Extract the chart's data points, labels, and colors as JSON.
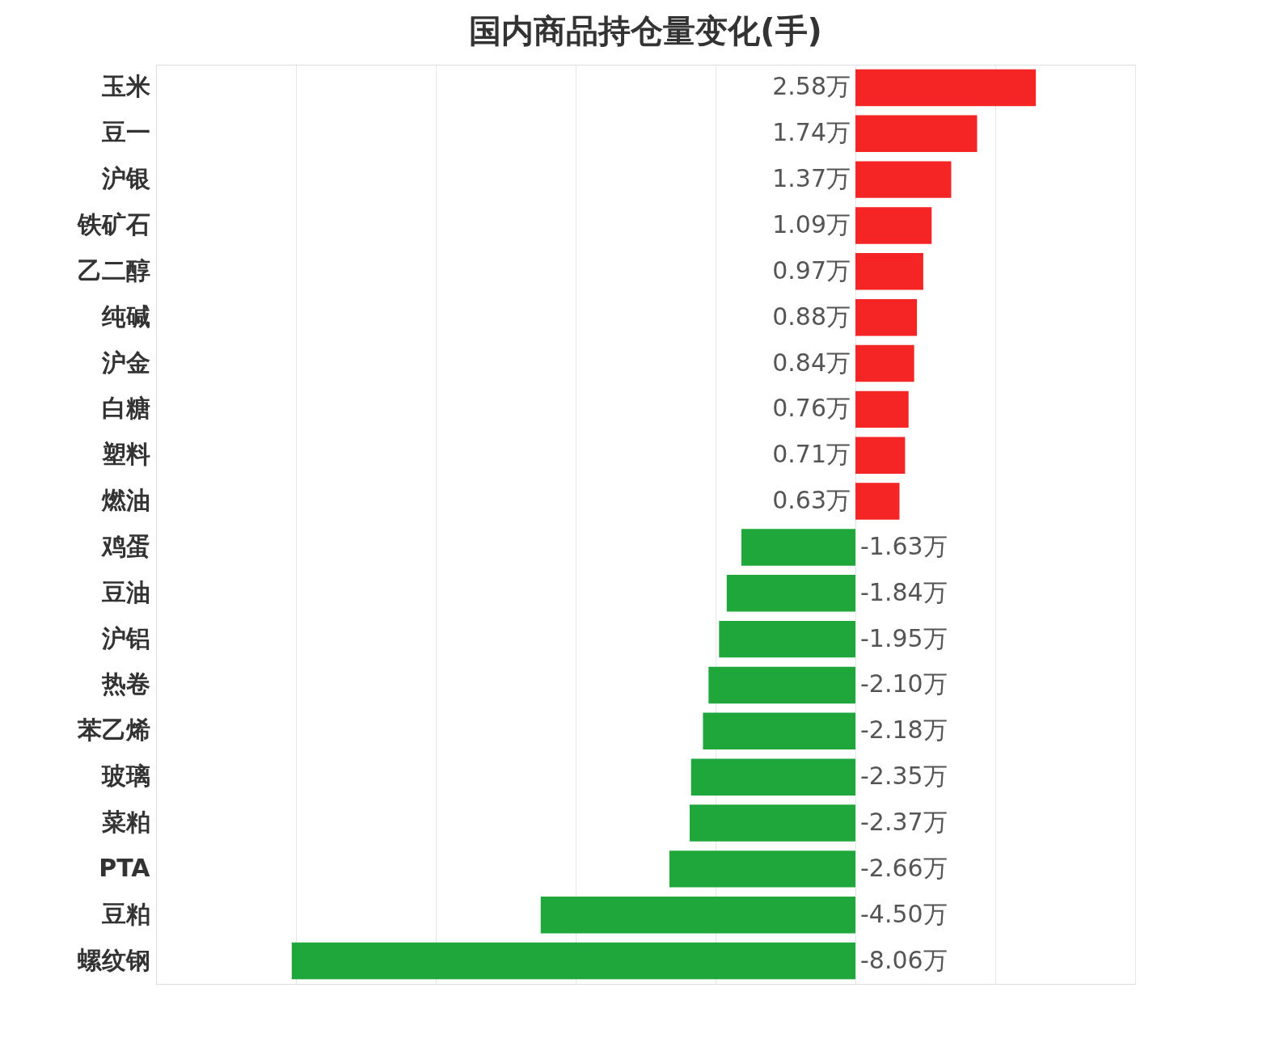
{
  "chart_data": {
    "type": "bar",
    "orientation": "horizontal",
    "title": "国内商品持仓量变化(手)",
    "categories": [
      "玉米",
      "豆一",
      "沪银",
      "铁矿石",
      "乙二醇",
      "纯碱",
      "沪金",
      "白糖",
      "塑料",
      "燃油",
      "鸡蛋",
      "豆油",
      "沪铝",
      "热卷",
      "苯乙烯",
      "玻璃",
      "菜粕",
      "PTA",
      "豆粕",
      "螺纹钢"
    ],
    "values": [
      2.58,
      1.74,
      1.37,
      1.09,
      0.97,
      0.88,
      0.84,
      0.76,
      0.71,
      0.63,
      -1.63,
      -1.84,
      -1.95,
      -2.1,
      -2.18,
      -2.35,
      -2.37,
      -2.66,
      -4.5,
      -8.06
    ],
    "value_labels": [
      "2.58万",
      "1.74万",
      "1.37万",
      "1.09万",
      "0.97万",
      "0.88万",
      "0.84万",
      "0.76万",
      "0.71万",
      "0.63万",
      "-1.63万",
      "-1.84万",
      "-1.95万",
      "-2.10万",
      "-2.18万",
      "-2.35万",
      "-2.37万",
      "-2.66万",
      "-4.50万",
      "-8.06万"
    ],
    "colors": [
      "#f52525",
      "#f52525",
      "#f52525",
      "#f52525",
      "#f52525",
      "#f52525",
      "#f52525",
      "#f52525",
      "#f52525",
      "#f52525",
      "#20a73c",
      "#20a73c",
      "#20a73c",
      "#20a73c",
      "#20a73c",
      "#20a73c",
      "#20a73c",
      "#20a73c",
      "#20a73c",
      "#20a73c"
    ],
    "xlim": [
      -10,
      4
    ],
    "xticks": [
      {
        "value": -8,
        "label": null
      },
      {
        "value": -6,
        "label": null
      },
      {
        "value": -4,
        "label": null
      },
      {
        "value": -2,
        "label": null
      },
      {
        "value": 0,
        "label": null
      },
      {
        "value": 2,
        "label": null
      },
      {
        "value": 4,
        "label": null
      }
    ],
    "grid": "x",
    "tick_labels": "y"
  }
}
